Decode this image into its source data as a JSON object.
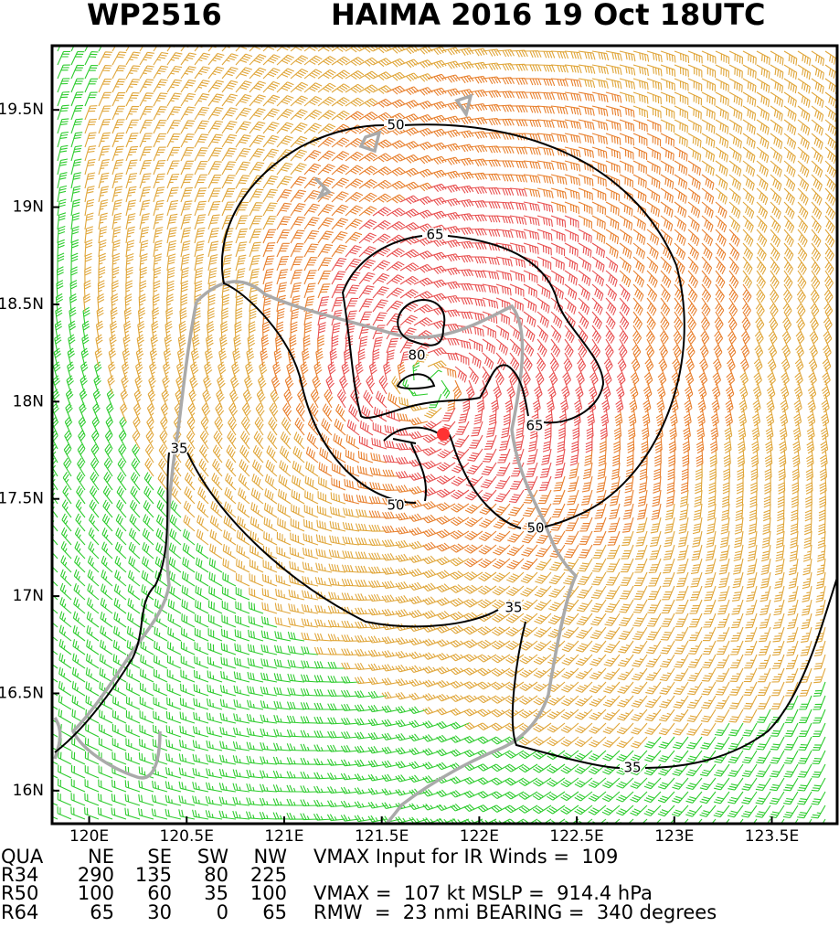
{
  "title": {
    "id": "WP2516",
    "storm": "HAIMA 2016 19 Oct 18UTC"
  },
  "map": {
    "xlim": [
      119.81,
      123.835
    ],
    "ylim": [
      15.83,
      19.83
    ],
    "xticks": [
      {
        "value": 120,
        "label": "120E"
      },
      {
        "value": 120.5,
        "label": "120.5E"
      },
      {
        "value": 121,
        "label": "121E"
      },
      {
        "value": 121.5,
        "label": "121.5E"
      },
      {
        "value": 122,
        "label": "122E"
      },
      {
        "value": 122.5,
        "label": "122.5E"
      },
      {
        "value": 123,
        "label": "123E"
      },
      {
        "value": 123.5,
        "label": "123.5E"
      }
    ],
    "yticks": [
      {
        "value": 19.5,
        "label": "19.5N"
      },
      {
        "value": 19,
        "label": "19N"
      },
      {
        "value": 18.5,
        "label": "18.5N"
      },
      {
        "value": 18,
        "label": "18N"
      },
      {
        "value": 17.5,
        "label": "17.5N"
      },
      {
        "value": 17,
        "label": "17N"
      },
      {
        "value": 16.5,
        "label": "16.5N"
      },
      {
        "value": 16,
        "label": "16N"
      }
    ],
    "contour_labels": [
      "50",
      "65",
      "80",
      "65",
      "35",
      "50",
      "50",
      "35",
      "35"
    ]
  },
  "table": {
    "header": [
      "QUA",
      "NE",
      "SE",
      "SW",
      "NW"
    ],
    "rows": [
      [
        "R34",
        "290",
        "135",
        "80",
        "225"
      ],
      [
        "R50",
        "100",
        "60",
        "35",
        "100"
      ],
      [
        "R64",
        "65",
        "30",
        "0",
        "65"
      ]
    ]
  },
  "notes": [
    "VMAX Input for IR Winds =  109",
    "VMAX =  107 kt MSLP =  914.4 hPa",
    "RMW  =  23 nmi BEARING =  340 degrees"
  ]
}
